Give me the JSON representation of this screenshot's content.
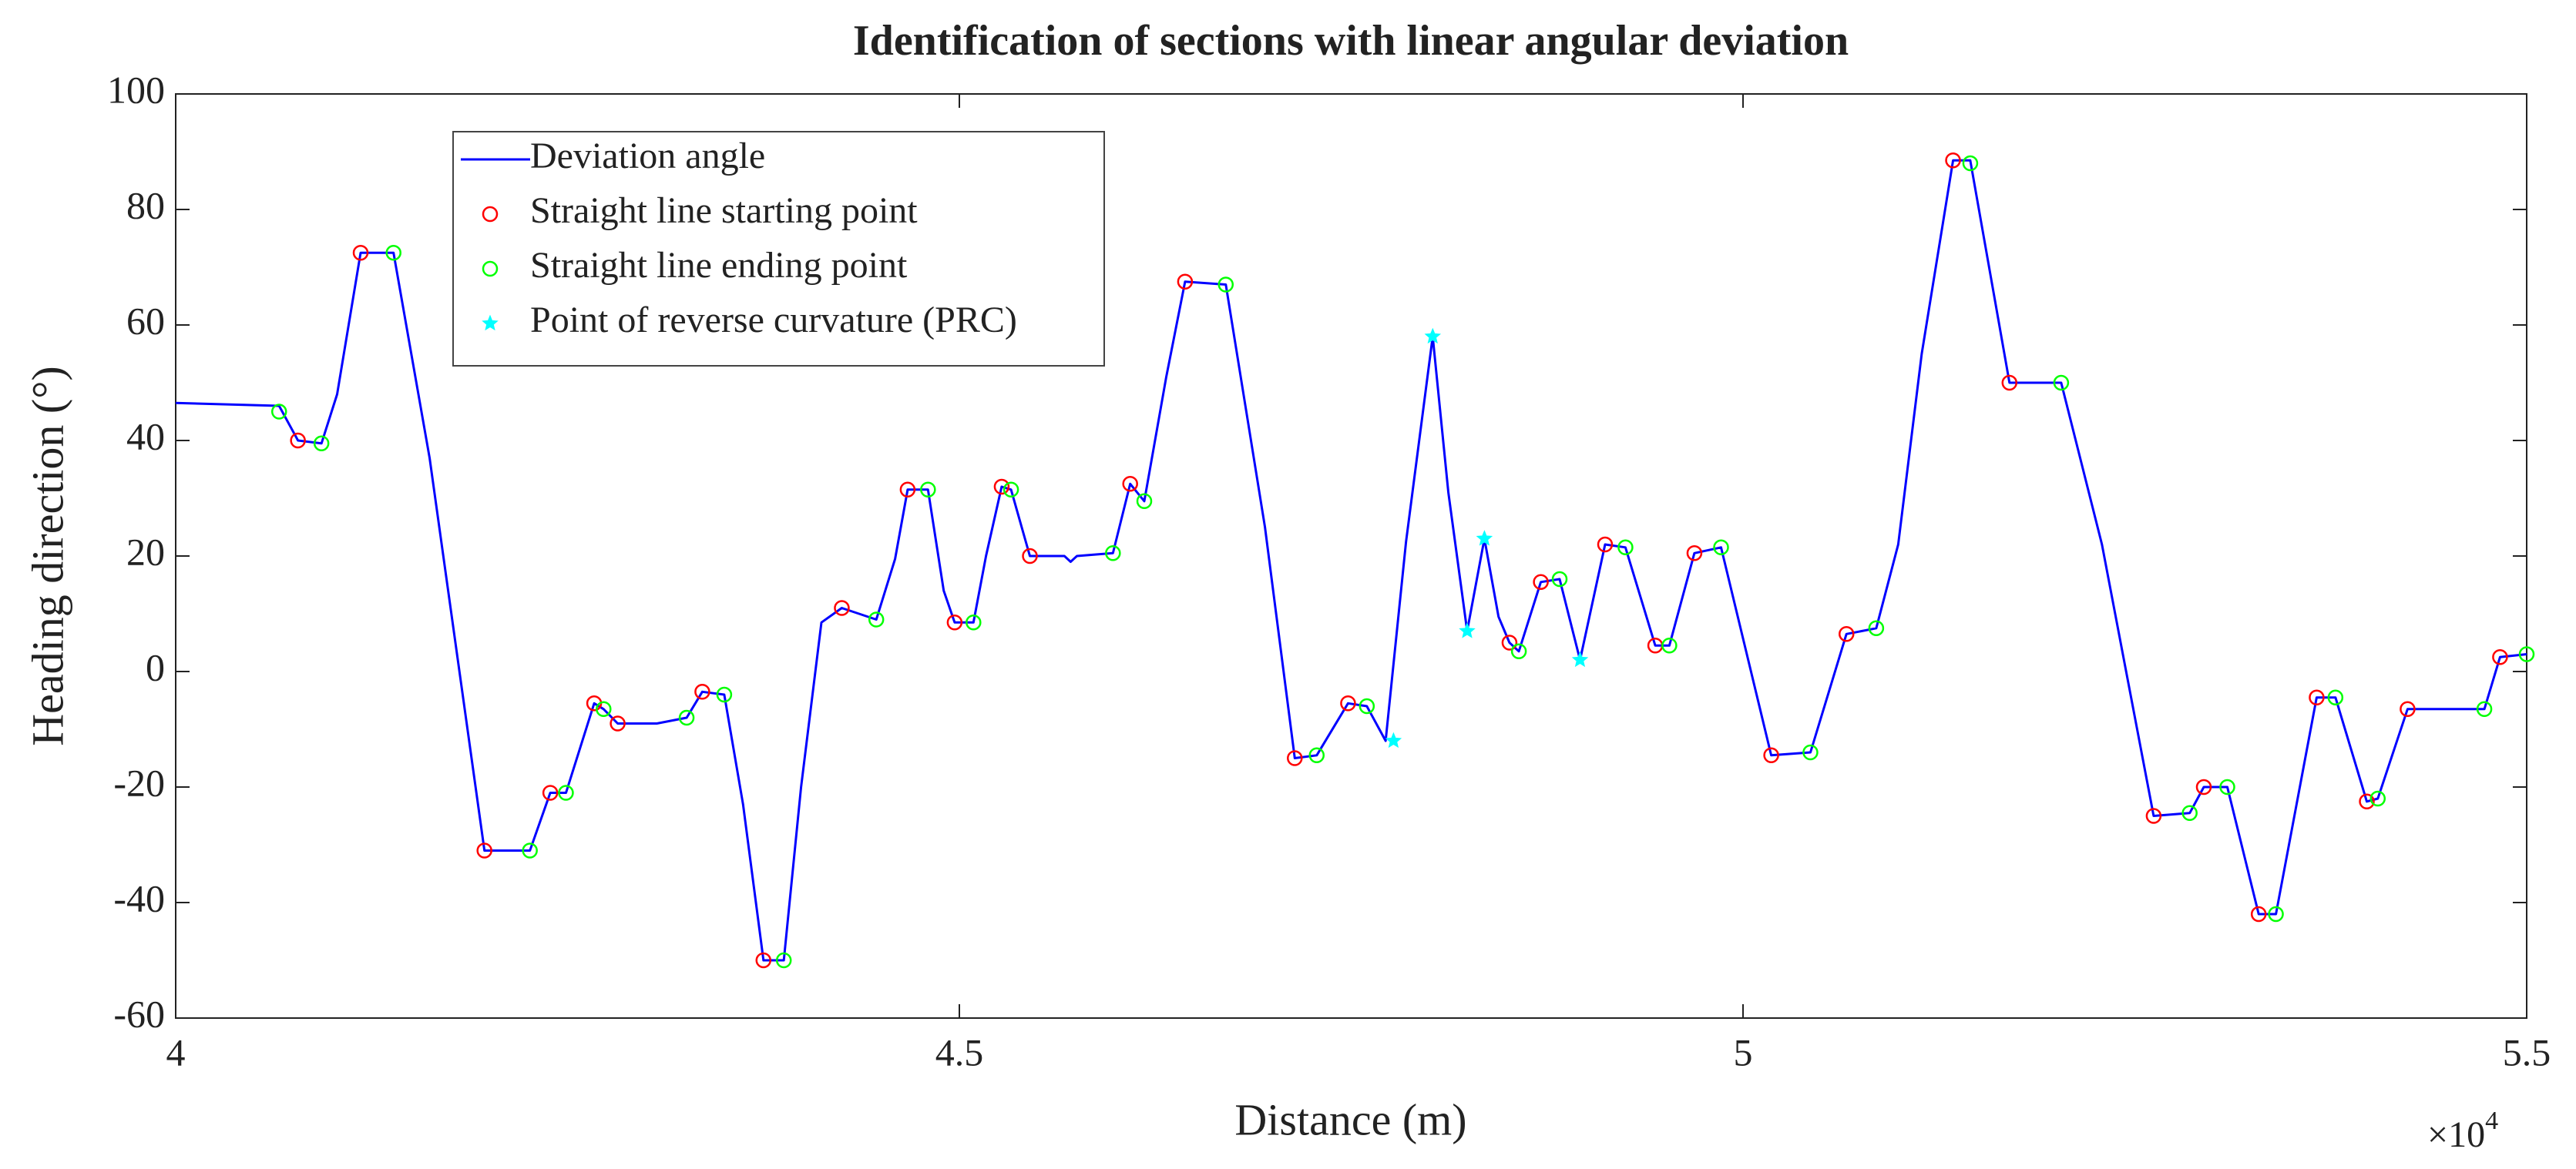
{
  "chart_data": {
    "type": "line",
    "title": "Identification of sections with linear angular deviation",
    "x_label": "Distance (m)",
    "y_label": "Heading direction (°)",
    "x_multiplier": "×10",
    "x_multiplier_exponent": "4",
    "xlim": [
      40000,
      55000
    ],
    "xticks": [
      {
        "value": 40000,
        "label": "4"
      },
      {
        "value": 45000,
        "label": "4.5"
      },
      {
        "value": 50000,
        "label": "5"
      },
      {
        "value": 55000,
        "label": "5.5"
      }
    ],
    "ylim": [
      -60,
      100
    ],
    "yticks": [
      -60,
      -40,
      -20,
      0,
      20,
      40,
      60,
      80,
      100
    ],
    "grid": false,
    "legend": "upper left",
    "series": [
      {
        "name": "Deviation angle",
        "color": "#0000ff",
        "marker": "none",
        "x": [
          40000,
          40660,
          40780,
          40930,
          41030,
          41180,
          41390,
          41620,
          41970,
          42260,
          42390,
          42490,
          42670,
          42730,
          42820,
          43070,
          43260,
          43360,
          43500,
          43620,
          43750,
          43880,
          43990,
          44120,
          44250,
          44470,
          44590,
          44670,
          44800,
          44900,
          44970,
          45090,
          45170,
          45270,
          45330,
          45450,
          45670,
          45710,
          45750,
          45980,
          46090,
          46180,
          46320,
          46440,
          46700,
          46950,
          47140,
          47280,
          47480,
          47600,
          47720,
          47850,
          48020,
          48120,
          48240,
          48350,
          48440,
          48510,
          48570,
          48710,
          48830,
          48960,
          49120,
          49250,
          49440,
          49530,
          49690,
          49860,
          50180,
          50430,
          50660,
          50850,
          50990,
          51140,
          51340,
          51450,
          51700,
          51850,
          52030,
          52290,
          52620,
          52850,
          52940,
          53090,
          53290,
          53400,
          53660,
          53780,
          53980,
          54050,
          54240,
          54730,
          54830,
          55000
        ],
        "values": [
          46.5,
          46,
          40,
          39.5,
          48,
          72.5,
          72.5,
          37,
          -31,
          -31,
          -21,
          -21,
          -5.5,
          -6.5,
          -9,
          -9,
          -8,
          -3.5,
          -4,
          -23,
          -50,
          -50,
          -20,
          8.5,
          11,
          9,
          19.5,
          31.5,
          31.5,
          14,
          8.5,
          8.5,
          20,
          32,
          31.5,
          20,
          20,
          19,
          20,
          20.5,
          32.5,
          29.5,
          51,
          67.5,
          67,
          25,
          -15,
          -14.5,
          -5.5,
          -6,
          -12,
          22.5,
          58,
          31,
          7,
          23,
          9.5,
          5,
          3.5,
          15.5,
          16,
          2,
          22,
          21.5,
          4.5,
          4.5,
          20.5,
          21.5,
          -14.5,
          -14,
          6.5,
          7.5,
          22,
          55,
          88.5,
          88.5,
          50,
          50,
          50,
          22,
          -25,
          -24.5,
          -20,
          -20,
          -42,
          -42,
          -4.5,
          -4.5,
          -22.5,
          -22,
          -6.5,
          -6.5,
          2.5,
          3
        ]
      },
      {
        "name": "Straight line starting point",
        "color": "#ff0000",
        "marker": "circle",
        "x": [
          40780,
          41180,
          41970,
          42390,
          42670,
          42820,
          43360,
          43750,
          44250,
          44670,
          44970,
          45270,
          45450,
          46090,
          46440,
          47140,
          47480,
          48510,
          48710,
          49120,
          49440,
          49690,
          50180,
          50660,
          51340,
          51700,
          52620,
          52940,
          53290,
          53660,
          53980,
          54240,
          54830
        ],
        "values": [
          40,
          72.5,
          -31,
          -21,
          -5.5,
          -9,
          -3.5,
          -50,
          11,
          31.5,
          8.5,
          32,
          20,
          32.5,
          67.5,
          -15,
          -5.5,
          5,
          15.5,
          22,
          4.5,
          20.5,
          -14.5,
          6.5,
          88.5,
          50,
          -25,
          -20,
          -42,
          -4.5,
          -22.5,
          -6.5,
          2.5
        ]
      },
      {
        "name": "Straight line ending point",
        "color": "#00ff00",
        "marker": "circle",
        "x": [
          40660,
          40930,
          41390,
          42260,
          42490,
          42730,
          43260,
          43500,
          43880,
          44470,
          44800,
          45090,
          45330,
          45980,
          46180,
          46700,
          47280,
          47600,
          48570,
          48830,
          49250,
          49530,
          49860,
          50430,
          50850,
          51450,
          52030,
          52850,
          53090,
          53400,
          53780,
          54050,
          54730,
          55000
        ],
        "values": [
          45,
          39.5,
          72.5,
          -31,
          -21,
          -6.5,
          -8,
          -4,
          -50,
          9,
          31.5,
          8.5,
          31.5,
          20.5,
          29.5,
          67,
          -14.5,
          -6,
          3.5,
          16,
          21.5,
          4.5,
          21.5,
          -14,
          7.5,
          88,
          50,
          -24.5,
          -20,
          -42,
          -4.5,
          -22,
          -6.5,
          3
        ]
      },
      {
        "name": "Point of reverse curvature (PRC)",
        "color": "#00ffff",
        "marker": "star",
        "x": [
          47770,
          48020,
          48240,
          48350,
          48960
        ],
        "values": [
          -12,
          58,
          7,
          23,
          2
        ]
      }
    ]
  }
}
